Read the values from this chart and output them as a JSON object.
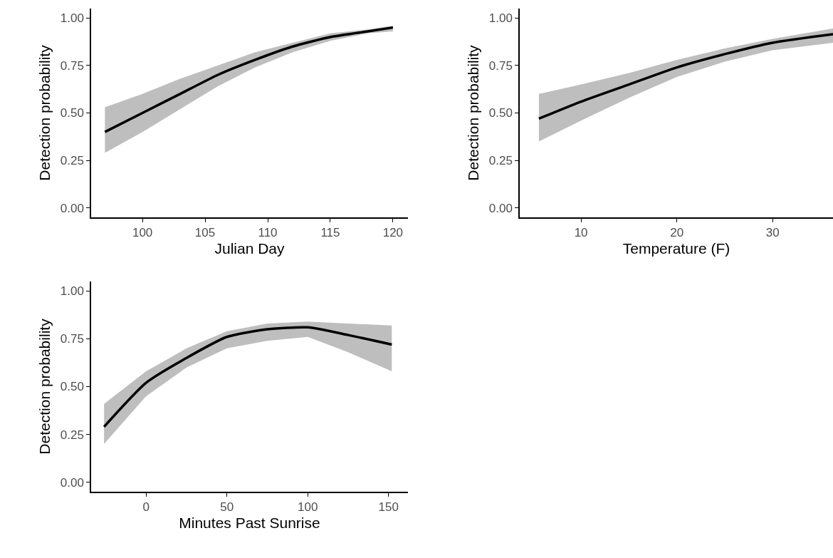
{
  "chart_data": [
    {
      "type": "line",
      "xlabel": "Julian Day",
      "ylabel": "Detection probability",
      "x": [
        97,
        100,
        103,
        106,
        109,
        112,
        115,
        118,
        120
      ],
      "series": [
        {
          "color": "#000000",
          "values": [
            0.4,
            0.5,
            0.6,
            0.7,
            0.78,
            0.85,
            0.9,
            0.93,
            0.95
          ],
          "lower": [
            0.29,
            0.4,
            0.52,
            0.64,
            0.74,
            0.82,
            0.88,
            0.92,
            0.93
          ],
          "upper": [
            0.53,
            0.6,
            0.68,
            0.75,
            0.82,
            0.87,
            0.92,
            0.94,
            0.96
          ]
        }
      ],
      "xlim": [
        95.9,
        121.2
      ],
      "xticks": [
        100,
        105,
        110,
        115,
        120
      ],
      "ylim": [
        -0.05,
        1.05
      ],
      "yticks": [
        {
          "value": 0,
          "label": "0.00"
        },
        {
          "value": 0.25,
          "label": "0.25"
        },
        {
          "value": 0.5,
          "label": "0.50"
        },
        {
          "value": 0.75,
          "label": "0.75"
        },
        {
          "value": 1,
          "label": "1.00"
        }
      ]
    },
    {
      "type": "line",
      "xlabel": "Temperature (F)",
      "ylabel": "Detection probability",
      "x": [
        5.6,
        10,
        15,
        20,
        25,
        30,
        36.3
      ],
      "series": [
        {
          "color": "#000000",
          "values": [
            0.47,
            0.56,
            0.65,
            0.74,
            0.81,
            0.87,
            0.915
          ],
          "lower": [
            0.35,
            0.46,
            0.58,
            0.69,
            0.77,
            0.83,
            0.87
          ],
          "upper": [
            0.6,
            0.65,
            0.71,
            0.78,
            0.84,
            0.89,
            0.945
          ]
        }
      ],
      "xlim": [
        3.6,
        36.3
      ],
      "xticks": [
        10,
        20,
        30
      ],
      "ylim": [
        -0.05,
        1.05
      ],
      "yticks": [
        {
          "value": 0,
          "label": "0.00"
        },
        {
          "value": 0.25,
          "label": "0.25"
        },
        {
          "value": 0.5,
          "label": "0.50"
        },
        {
          "value": 0.75,
          "label": "0.75"
        },
        {
          "value": 1,
          "label": "1.00"
        }
      ]
    },
    {
      "type": "line",
      "xlabel": "Minutes Past Sunrise",
      "ylabel": "Detection probability",
      "x": [
        -26,
        0,
        25,
        50,
        75,
        100,
        125,
        152
      ],
      "series": [
        {
          "color": "#000000",
          "values": [
            0.29,
            0.52,
            0.65,
            0.76,
            0.8,
            0.81,
            0.77,
            0.72
          ],
          "lower": [
            0.2,
            0.45,
            0.6,
            0.7,
            0.74,
            0.76,
            0.68,
            0.58
          ],
          "upper": [
            0.41,
            0.58,
            0.7,
            0.79,
            0.83,
            0.84,
            0.83,
            0.82
          ]
        }
      ],
      "xlim": [
        -34,
        162
      ],
      "xticks": [
        0,
        50,
        100,
        150
      ],
      "ylim": [
        -0.05,
        1.05
      ],
      "yticks": [
        {
          "value": 0,
          "label": "0.00"
        },
        {
          "value": 0.25,
          "label": "0.25"
        },
        {
          "value": 0.5,
          "label": "0.50"
        },
        {
          "value": 0.75,
          "label": "0.75"
        },
        {
          "value": 1,
          "label": "1.00"
        }
      ]
    }
  ]
}
